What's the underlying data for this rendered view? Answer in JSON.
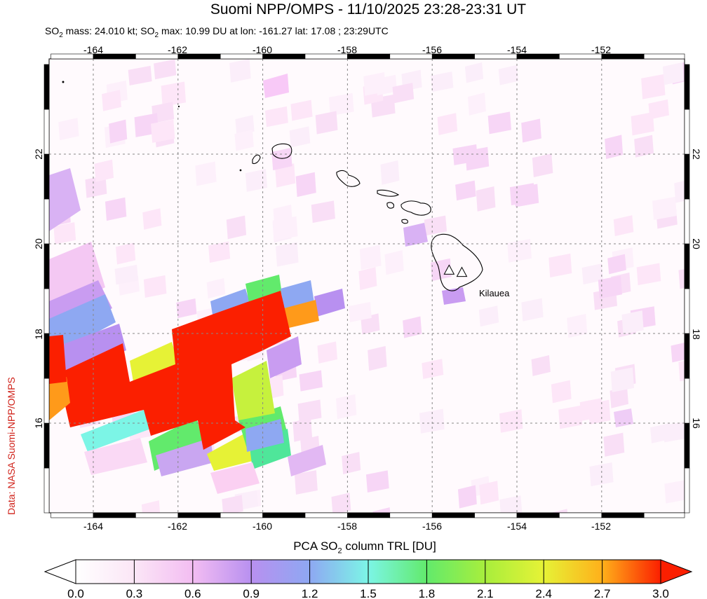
{
  "title": "Suomi NPP/OMPS - 11/10/2025 23:28-23:31 UT",
  "subtitle": {
    "mass_prefix": "SO",
    "mass_sub": "2",
    "mass_text": " mass: 24.010 kt; SO",
    "max_sub": "2",
    "max_text": " max: 10.99 DU at lon: -161.27 lat: 17.08 ; 23:29UTC"
  },
  "credit": "Data: NASA Suomi-NPP/OMPS",
  "volcano_label": "Kilauea",
  "colorbar": {
    "title_prefix": "PCA SO",
    "title_sub": "2",
    "title_suffix": " column TRL [DU]",
    "ticks": [
      "0.0",
      "0.3",
      "0.6",
      "0.9",
      "1.2",
      "1.5",
      "1.8",
      "2.1",
      "2.4",
      "2.7",
      "3.0"
    ]
  },
  "map": {
    "lon_range": [
      -165,
      -150
    ],
    "lat_range": [
      14,
      24
    ],
    "lon_ticks": [
      "-164",
      "-162",
      "-160",
      "-158",
      "-156",
      "-154",
      "-152"
    ],
    "lat_ticks": [
      "16",
      "18",
      "20",
      "22"
    ],
    "volcanoes": [
      {
        "lon": -155.6,
        "lat": 19.4
      },
      {
        "lon": -155.3,
        "lat": 19.35
      }
    ]
  },
  "colors": {
    "low": "#ffffff",
    "pink": "#f7c6f5",
    "purple": "#b890f0",
    "blue": "#8ea8f2",
    "cyan": "#7cf5e6",
    "green": "#62ea6c",
    "yellow": "#e6f236",
    "orange": "#ff9a1a",
    "red": "#fb1f00",
    "coast": "#000000",
    "credit": "#d0221a"
  }
}
